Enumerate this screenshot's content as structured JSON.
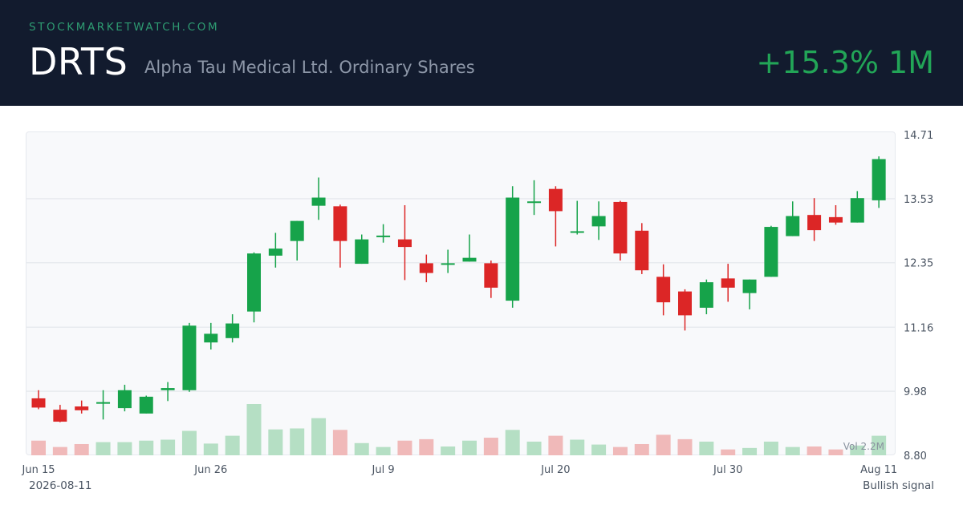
{
  "header": {
    "site": "STOCKMARKETWATCH.COM",
    "ticker": "DRTS",
    "company": "Alpha Tau Medical Ltd. Ordinary Shares",
    "change": "+15.3% 1M"
  },
  "footer": {
    "date": "2026-08-11",
    "signal": "Bullish signal"
  },
  "colors": {
    "up": "#16a34a",
    "down": "#dc2626",
    "up_volume": "#b5dfc4",
    "down_volume": "#f0b9b9",
    "header_bg": "#121b2e",
    "change": "#22a557"
  },
  "chart_data": {
    "type": "candlestick",
    "y_ticks": [
      "14.71",
      "13.53",
      "12.35",
      "11.16",
      "9.98",
      "8.80"
    ],
    "ylim": [
      8.8,
      14.71
    ],
    "x_tick_labels": [
      {
        "label": "Jun 15",
        "index": 0
      },
      {
        "label": "Jun 26",
        "index": 8
      },
      {
        "label": "Jul 9",
        "index": 16
      },
      {
        "label": "Jul 20",
        "index": 24
      },
      {
        "label": "Jul 30",
        "index": 32
      },
      {
        "label": "Aug 11",
        "index": 39
      }
    ],
    "grid": true,
    "volume_label": "Vol 2.2M",
    "candles": [
      {
        "o": 9.85,
        "h": 10.0,
        "l": 9.65,
        "c": 9.68,
        "v": 0.3
      },
      {
        "o": 9.64,
        "h": 9.73,
        "l": 9.41,
        "c": 9.42,
        "v": 0.17
      },
      {
        "o": 9.7,
        "h": 9.81,
        "l": 9.57,
        "c": 9.63,
        "v": 0.23
      },
      {
        "o": 9.78,
        "h": 10.0,
        "l": 9.46,
        "c": 9.78,
        "v": 0.27
      },
      {
        "o": 9.67,
        "h": 10.1,
        "l": 9.61,
        "c": 10.0,
        "v": 0.27
      },
      {
        "o": 9.57,
        "h": 9.9,
        "l": 9.57,
        "c": 9.88,
        "v": 0.3
      },
      {
        "o": 10.0,
        "h": 10.15,
        "l": 9.8,
        "c": 10.04,
        "v": 0.32
      },
      {
        "o": 10.0,
        "h": 11.24,
        "l": 9.97,
        "c": 11.19,
        "v": 0.5
      },
      {
        "o": 10.88,
        "h": 11.24,
        "l": 10.75,
        "c": 11.04,
        "v": 0.24
      },
      {
        "o": 10.96,
        "h": 11.4,
        "l": 10.88,
        "c": 11.23,
        "v": 0.4
      },
      {
        "o": 11.45,
        "h": 12.54,
        "l": 11.25,
        "c": 12.52,
        "v": 1.05
      },
      {
        "o": 12.48,
        "h": 12.9,
        "l": 12.26,
        "c": 12.61,
        "v": 0.53
      },
      {
        "o": 12.75,
        "h": 13.12,
        "l": 12.39,
        "c": 13.12,
        "v": 0.55
      },
      {
        "o": 13.4,
        "h": 13.92,
        "l": 13.14,
        "c": 13.55,
        "v": 0.76
      },
      {
        "o": 13.39,
        "h": 13.42,
        "l": 12.26,
        "c": 12.75,
        "v": 0.52
      },
      {
        "o": 12.33,
        "h": 12.87,
        "l": 12.33,
        "c": 12.78,
        "v": 0.25
      },
      {
        "o": 12.83,
        "h": 13.06,
        "l": 12.72,
        "c": 12.85,
        "v": 0.17
      },
      {
        "o": 12.78,
        "h": 13.41,
        "l": 12.03,
        "c": 12.64,
        "v": 0.3
      },
      {
        "o": 12.34,
        "h": 12.5,
        "l": 11.99,
        "c": 12.16,
        "v": 0.33
      },
      {
        "o": 12.32,
        "h": 12.59,
        "l": 12.16,
        "c": 12.34,
        "v": 0.18
      },
      {
        "o": 12.37,
        "h": 12.87,
        "l": 12.37,
        "c": 12.44,
        "v": 0.3
      },
      {
        "o": 12.34,
        "h": 12.39,
        "l": 11.7,
        "c": 11.89,
        "v": 0.36
      },
      {
        "o": 11.65,
        "h": 13.76,
        "l": 11.52,
        "c": 13.55,
        "v": 0.52
      },
      {
        "o": 13.48,
        "h": 13.87,
        "l": 13.23,
        "c": 13.48,
        "v": 0.28
      },
      {
        "o": 13.71,
        "h": 13.76,
        "l": 12.65,
        "c": 13.3,
        "v": 0.4
      },
      {
        "o": 12.93,
        "h": 13.49,
        "l": 12.87,
        "c": 12.93,
        "v": 0.32
      },
      {
        "o": 13.02,
        "h": 13.48,
        "l": 12.77,
        "c": 13.21,
        "v": 0.22
      },
      {
        "o": 13.47,
        "h": 13.49,
        "l": 12.39,
        "c": 12.52,
        "v": 0.17
      },
      {
        "o": 12.94,
        "h": 13.08,
        "l": 12.14,
        "c": 12.21,
        "v": 0.23
      },
      {
        "o": 12.09,
        "h": 12.32,
        "l": 11.38,
        "c": 11.62,
        "v": 0.42
      },
      {
        "o": 11.82,
        "h": 11.86,
        "l": 11.1,
        "c": 11.38,
        "v": 0.33
      },
      {
        "o": 11.52,
        "h": 12.04,
        "l": 11.4,
        "c": 11.99,
        "v": 0.28
      },
      {
        "o": 12.06,
        "h": 12.33,
        "l": 11.63,
        "c": 11.89,
        "v": 0.12
      },
      {
        "o": 11.79,
        "h": 12.04,
        "l": 11.49,
        "c": 12.04,
        "v": 0.15
      },
      {
        "o": 12.09,
        "h": 13.03,
        "l": 12.09,
        "c": 13.01,
        "v": 0.28
      },
      {
        "o": 12.84,
        "h": 13.48,
        "l": 12.84,
        "c": 13.21,
        "v": 0.17
      },
      {
        "o": 13.23,
        "h": 13.54,
        "l": 12.75,
        "c": 12.95,
        "v": 0.18
      },
      {
        "o": 13.19,
        "h": 13.41,
        "l": 13.05,
        "c": 13.09,
        "v": 0.12
      },
      {
        "o": 13.09,
        "h": 13.67,
        "l": 13.09,
        "c": 13.54,
        "v": 0.2
      },
      {
        "o": 13.5,
        "h": 14.31,
        "l": 13.36,
        "c": 14.26,
        "v": 0.4
      }
    ]
  }
}
